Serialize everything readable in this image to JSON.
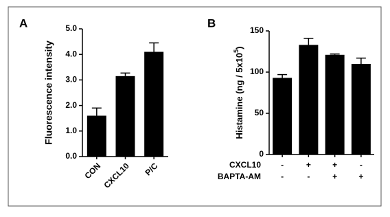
{
  "chart_data": [
    {
      "type": "bar",
      "panel": "A",
      "ylabel": "Fluorescence intensity",
      "categories": [
        "CON",
        "CXCL10",
        "P/C"
      ],
      "values": [
        1.6,
        3.15,
        4.1
      ],
      "errors": [
        0.3,
        0.12,
        0.35
      ],
      "color": "#000000",
      "ylim": [
        0,
        5
      ],
      "yticks": [
        {
          "value": 0,
          "label": "0.0"
        },
        {
          "value": 1,
          "label": "1.0"
        },
        {
          "value": 2,
          "label": "2.0"
        },
        {
          "value": 3,
          "label": "3.0"
        },
        {
          "value": 4,
          "label": "4.0"
        },
        {
          "value": 5,
          "label": "5.0"
        }
      ]
    },
    {
      "type": "bar",
      "panel": "B",
      "ylabel_parts": [
        "Histamine (ng / 5x10",
        "5",
        ")"
      ],
      "values": [
        93,
        133,
        121,
        110
      ],
      "errors": [
        4,
        8,
        1,
        7
      ],
      "color": "#000000",
      "ylim": [
        0,
        150
      ],
      "yticks": [
        0,
        50,
        100,
        150
      ],
      "treatments": [
        {
          "name": "CXCL10",
          "signs": [
            "-",
            "+",
            "+",
            "-"
          ]
        },
        {
          "name": "BAPTA-AM",
          "signs": [
            "-",
            "-",
            "+",
            "+"
          ]
        }
      ]
    }
  ]
}
